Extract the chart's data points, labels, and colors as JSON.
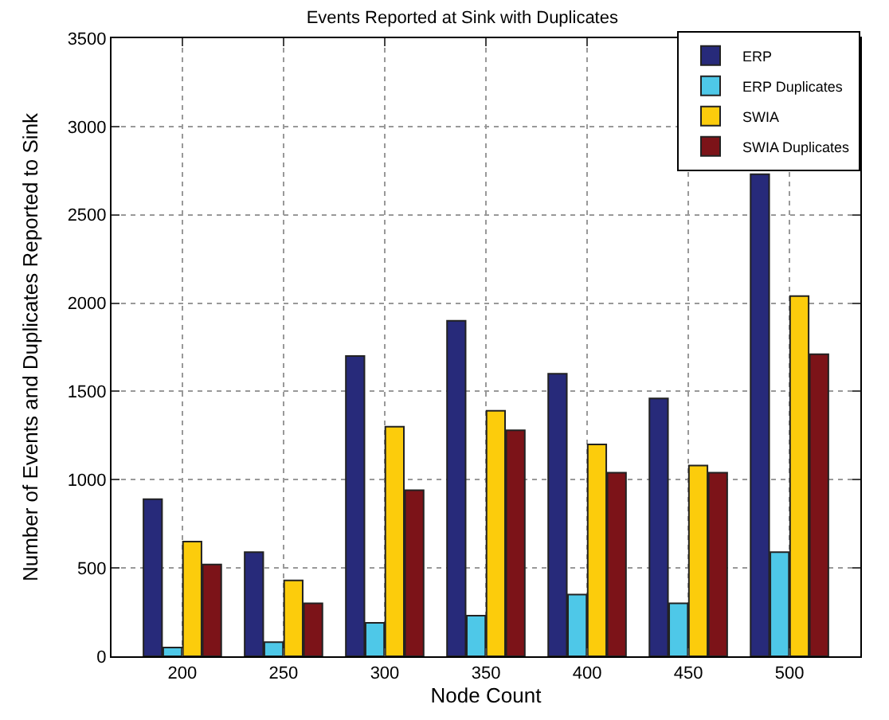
{
  "chart_data": {
    "type": "bar",
    "title": "Events Reported at Sink with Duplicates",
    "xlabel": "Node Count",
    "ylabel": "Number of Events and Duplicates Reported to Sink",
    "categories": [
      "200",
      "250",
      "300",
      "350",
      "400",
      "450",
      "500"
    ],
    "series": [
      {
        "name": "ERP",
        "color": "#272a7a",
        "values": [
          890,
          590,
          1700,
          1900,
          1600,
          1460,
          2730
        ]
      },
      {
        "name": "ERP Duplicates",
        "color": "#4ec8e8",
        "values": [
          50,
          80,
          190,
          230,
          350,
          300,
          590
        ]
      },
      {
        "name": "SWIA",
        "color": "#fccc0c",
        "values": [
          650,
          430,
          1300,
          1390,
          1200,
          1080,
          2040
        ]
      },
      {
        "name": "SWIA Duplicates",
        "color": "#7c1318",
        "values": [
          520,
          300,
          940,
          1280,
          1040,
          1040,
          1710
        ]
      }
    ],
    "ylim": [
      0,
      3500
    ],
    "yticks": [
      0,
      500,
      1000,
      1500,
      2000,
      2500,
      3000,
      3500
    ],
    "grid": true,
    "legend": "top right"
  }
}
